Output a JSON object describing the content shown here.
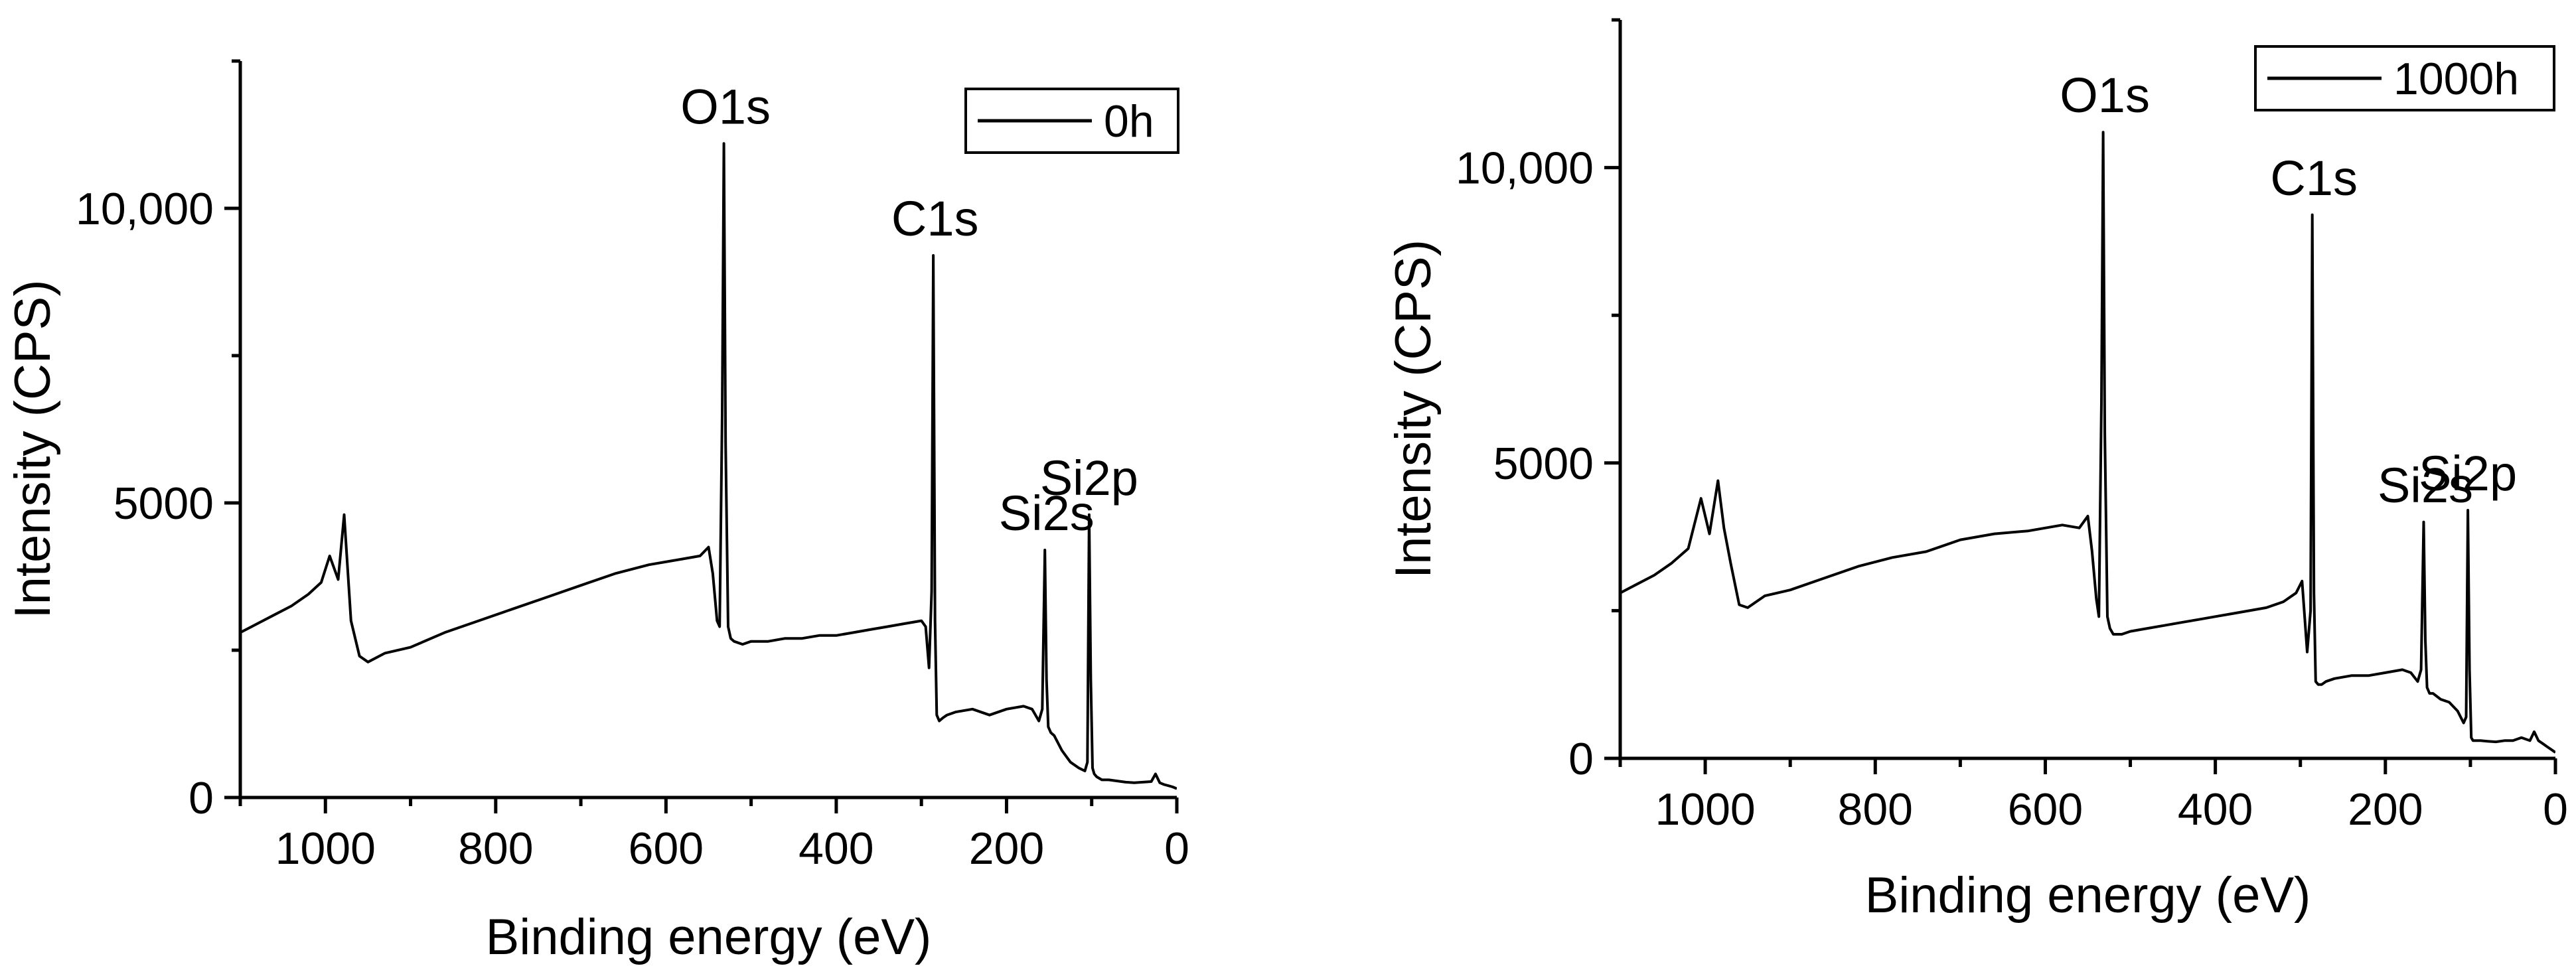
{
  "chart_data": [
    {
      "type": "line",
      "title": "",
      "xlabel": "Binding energy (eV)",
      "ylabel": "Intensity (CPS)",
      "xlim": [
        1100,
        0
      ],
      "ylim": [
        0,
        12500
      ],
      "x_ticks": [
        1000,
        800,
        600,
        400,
        200,
        0
      ],
      "x_tick_labels": [
        "1000",
        "800",
        "600",
        "400",
        "200",
        "0"
      ],
      "y_ticks": [
        0,
        5000,
        10000
      ],
      "y_tick_labels": [
        "0",
        "5000",
        "10,000"
      ],
      "legend": {
        "entries": [
          "0h"
        ],
        "position": "top-right"
      },
      "series": [
        {
          "name": "0h",
          "x": [
            1100,
            1080,
            1060,
            1040,
            1020,
            1005,
            995,
            985,
            978,
            970,
            960,
            950,
            930,
            900,
            860,
            820,
            780,
            740,
            700,
            660,
            620,
            580,
            560,
            550,
            545,
            540,
            537,
            534,
            532,
            530,
            527,
            524,
            520,
            510,
            500,
            480,
            460,
            440,
            420,
            400,
            380,
            360,
            340,
            320,
            300,
            295,
            291,
            288,
            286,
            284,
            282,
            279,
            275,
            270,
            260,
            240,
            220,
            200,
            180,
            170,
            162,
            158,
            155,
            153,
            151,
            148,
            144,
            135,
            125,
            115,
            108,
            105,
            103,
            101,
            99,
            97,
            94,
            88,
            80,
            70,
            60,
            50,
            40,
            30,
            25,
            20,
            15,
            10,
            5,
            0
          ],
          "y": [
            2800,
            2950,
            3100,
            3250,
            3450,
            3650,
            4100,
            3700,
            4800,
            3000,
            2400,
            2300,
            2450,
            2550,
            2800,
            3000,
            3200,
            3400,
            3600,
            3800,
            3950,
            4050,
            4100,
            4250,
            3800,
            3000,
            2900,
            6500,
            11100,
            6000,
            2900,
            2700,
            2650,
            2600,
            2650,
            2650,
            2700,
            2700,
            2750,
            2750,
            2800,
            2850,
            2900,
            2950,
            3000,
            2900,
            2200,
            3500,
            9200,
            3000,
            1400,
            1300,
            1350,
            1400,
            1450,
            1500,
            1400,
            1500,
            1550,
            1500,
            1300,
            1500,
            4200,
            2000,
            1200,
            1100,
            1050,
            800,
            600,
            500,
            450,
            600,
            4800,
            2000,
            500,
            400,
            350,
            300,
            300,
            280,
            260,
            250,
            260,
            270,
            400,
            250,
            220,
            200,
            180,
            150
          ]
        }
      ],
      "peak_labels": [
        {
          "text": "O1s",
          "x": 530,
          "y": 11100
        },
        {
          "text": "C1s",
          "x": 284,
          "y": 9200
        },
        {
          "text": "Si2s",
          "x": 153,
          "y": 4200
        },
        {
          "text": "Si2p",
          "x": 103,
          "y": 4800
        }
      ]
    },
    {
      "type": "line",
      "title": "",
      "xlabel": "Binding energy (eV)",
      "ylabel": "Intensity (CPS)",
      "xlim": [
        1100,
        0
      ],
      "ylim": [
        0,
        12500
      ],
      "x_ticks": [
        1000,
        800,
        600,
        400,
        200,
        0
      ],
      "x_tick_labels": [
        "1000",
        "800",
        "600",
        "400",
        "200",
        "0"
      ],
      "y_ticks": [
        0,
        5000,
        10000
      ],
      "y_tick_labels": [
        "0",
        "5000",
        "10,000"
      ],
      "legend": {
        "entries": [
          "1000h"
        ],
        "position": "top-right"
      },
      "series": [
        {
          "name": "1000h",
          "x": [
            1100,
            1080,
            1060,
            1040,
            1020,
            1005,
            995,
            985,
            978,
            970,
            960,
            950,
            930,
            900,
            860,
            820,
            780,
            740,
            700,
            660,
            620,
            580,
            560,
            550,
            545,
            540,
            537,
            534,
            532,
            530,
            527,
            524,
            520,
            510,
            500,
            480,
            460,
            440,
            420,
            400,
            380,
            360,
            340,
            320,
            305,
            298,
            292,
            288,
            286,
            284,
            282,
            279,
            275,
            270,
            260,
            240,
            220,
            200,
            180,
            170,
            162,
            158,
            155,
            153,
            151,
            148,
            144,
            135,
            125,
            115,
            108,
            105,
            103,
            101,
            99,
            97,
            94,
            88,
            80,
            70,
            60,
            50,
            40,
            30,
            25,
            20,
            15,
            10,
            5,
            0
          ],
          "y": [
            2800,
            2950,
            3100,
            3300,
            3550,
            4400,
            3800,
            4700,
            3900,
            3300,
            2600,
            2550,
            2750,
            2850,
            3050,
            3250,
            3400,
            3500,
            3700,
            3800,
            3850,
            3950,
            3900,
            4100,
            3500,
            2700,
            2400,
            6000,
            10600,
            5500,
            2400,
            2200,
            2100,
            2100,
            2150,
            2200,
            2250,
            2300,
            2350,
            2400,
            2450,
            2500,
            2550,
            2650,
            2800,
            3000,
            1800,
            2500,
            9200,
            2800,
            1300,
            1250,
            1250,
            1300,
            1350,
            1400,
            1400,
            1450,
            1500,
            1450,
            1300,
            1500,
            4000,
            2000,
            1200,
            1100,
            1100,
            1000,
            950,
            800,
            600,
            700,
            4200,
            1500,
            350,
            300,
            300,
            300,
            290,
            280,
            300,
            300,
            350,
            300,
            450,
            300,
            250,
            200,
            150,
            100
          ]
        }
      ],
      "peak_labels": [
        {
          "text": "O1s",
          "x": 530,
          "y": 10600
        },
        {
          "text": "C1s",
          "x": 284,
          "y": 9200
        },
        {
          "text": "Si2s",
          "x": 153,
          "y": 4000
        },
        {
          "text": "Si2p",
          "x": 103,
          "y": 4200
        }
      ]
    }
  ]
}
